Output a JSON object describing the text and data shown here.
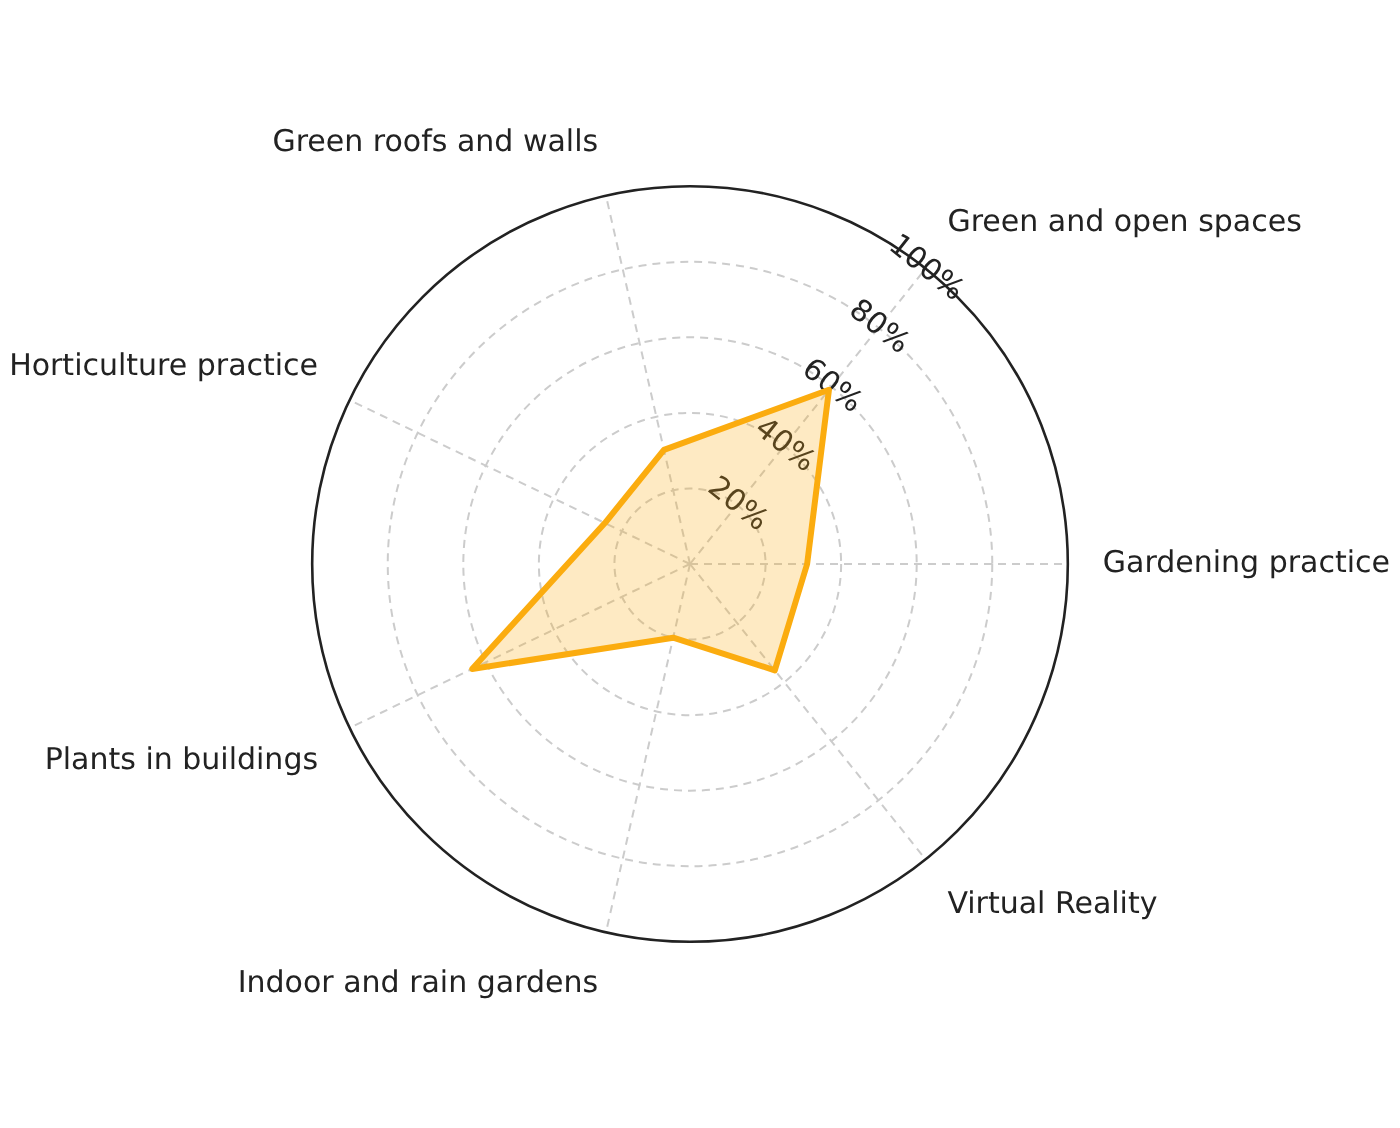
{
  "chart_data": {
    "type": "radar",
    "categories": [
      "Green and open spaces",
      "Gardening practice",
      "Virtual Reality",
      "Indoor and rain gardens",
      "Plants in buildings",
      "Horticulture practice",
      "Green roofs and walls"
    ],
    "series": [
      {
        "color": "#fbac0f",
        "values": [
          59,
          31,
          36,
          20,
          64,
          25,
          31
        ]
      }
    ],
    "ylim": [
      0,
      100
    ],
    "yticks": [
      {
        "value": 20,
        "label": "20%"
      },
      {
        "value": 40,
        "label": "40%"
      },
      {
        "value": 60,
        "label": "60%"
      },
      {
        "value": 80,
        "label": "80%"
      },
      {
        "value": 100,
        "label": "100%"
      }
    ],
    "grid": true,
    "legend": false,
    "marker": "none",
    "line_style": "solid"
  }
}
